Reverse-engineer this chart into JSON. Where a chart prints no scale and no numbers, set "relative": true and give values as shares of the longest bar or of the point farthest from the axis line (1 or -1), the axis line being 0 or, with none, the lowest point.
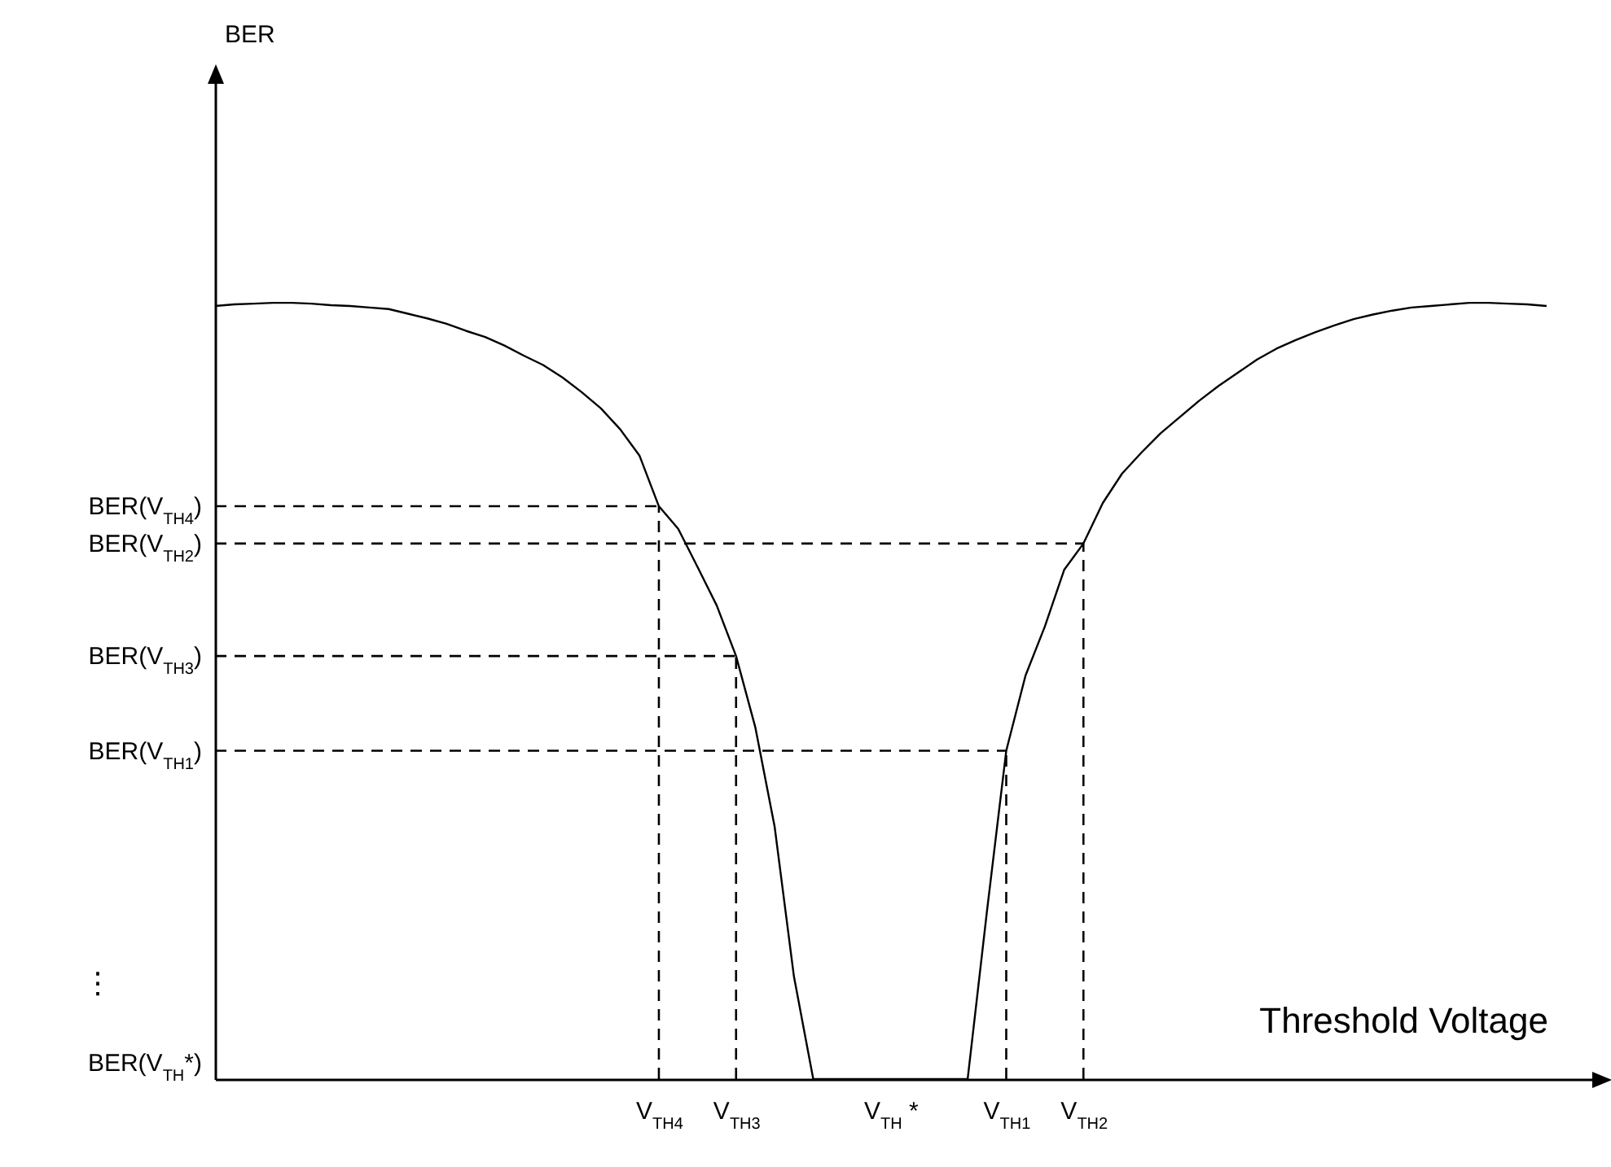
{
  "chart_data": {
    "type": "line",
    "relative": true,
    "xlabel": "Threshold Voltage",
    "categories": [
      null,
      null,
      null,
      null,
      null,
      null,
      null,
      null,
      null,
      null,
      null,
      null,
      null,
      null,
      null,
      null,
      null,
      null,
      null,
      null,
      null,
      null,
      null,
      "V$_{TH4}$",
      null,
      null,
      null,
      "V$_{TH3}$",
      null,
      null,
      null,
      null,
      null,
      null,
      null,
      "V$_{TH}$ *",
      null,
      null,
      null,
      null,
      null,
      "V$_{TH1}$",
      null,
      null,
      null,
      "V$_{TH2}$",
      null,
      null,
      null,
      null,
      null,
      null,
      null,
      null,
      null,
      null,
      null,
      null,
      null,
      null,
      null,
      null,
      null,
      null,
      null,
      null,
      null,
      null,
      null,
      null,
      null,
      null,
      null
    ],
    "series": [
      {
        "color": "#000000",
        "values": [
          0.996,
          0.998,
          0.999,
          1.0,
          1.0,
          0.999,
          0.997,
          0.996,
          0.994,
          0.992,
          0.986,
          0.98,
          0.973,
          0.964,
          0.956,
          0.945,
          0.932,
          0.92,
          0.904,
          0.885,
          0.864,
          0.837,
          0.803,
          0.738,
          0.709,
          0.66,
          0.61,
          0.545,
          0.453,
          0.325,
          0.132,
          0,
          0,
          0,
          0,
          0,
          0,
          0,
          0,
          0,
          0.216,
          0.423,
          0.52,
          0.583,
          0.656,
          0.69,
          0.742,
          0.78,
          0.807,
          0.832,
          0.853,
          0.874,
          0.893,
          0.91,
          0.927,
          0.941,
          0.952,
          0.962,
          0.971,
          0.979,
          0.985,
          0.99,
          0.994,
          0.996,
          0.998,
          1.0,
          1.0,
          0.999,
          0.998,
          0.996,
          null,
          null,
          null
        ]
      }
    ],
    "ref_lines": [
      {
        "axis": "y",
        "value": 0.738,
        "label": "BER(V$_{TH4}$)",
        "color": "#000000",
        "line_style": "dashed"
      },
      {
        "axis": "y",
        "value": 0.69,
        "label": "BER(V$_{TH2}$)",
        "color": "#000000",
        "line_style": "dashed"
      },
      {
        "axis": "y",
        "value": 0.545,
        "label": "BER(V$_{TH3}$)",
        "color": "#000000",
        "line_style": "dashed"
      },
      {
        "axis": "y",
        "value": 0.423,
        "label": "BER(V$_{TH1}$)",
        "color": "#000000",
        "line_style": "dashed"
      },
      {
        "axis": "x",
        "value": "V$_{TH4}$",
        "color": "#000000",
        "line_style": "dashed"
      },
      {
        "axis": "x",
        "value": "V$_{TH2}$",
        "color": "#000000",
        "line_style": "dashed"
      },
      {
        "axis": "x",
        "value": "V$_{TH3}$",
        "color": "#000000",
        "line_style": "dashed"
      },
      {
        "axis": "x",
        "value": "V$_{TH1}$",
        "color": "#000000",
        "line_style": "dashed"
      }
    ],
    "annotations": [
      "⋮",
      "BER(V$_{TH}$*)",
      "BER"
    ]
  }
}
